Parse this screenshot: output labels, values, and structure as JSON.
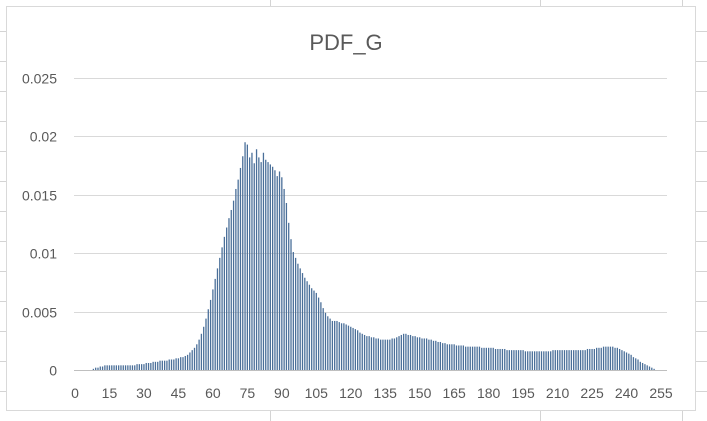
{
  "chart_data": {
    "type": "bar",
    "title": "PDF_G",
    "xlabel": "",
    "ylabel": "",
    "x_range": [
      0,
      255
    ],
    "ylim": [
      0,
      0.025
    ],
    "yticks": [
      0,
      0.005,
      0.01,
      0.015,
      0.02,
      0.025
    ],
    "ytick_labels": [
      "0",
      "0.005",
      "0.01",
      "0.015",
      "0.02",
      "0.025"
    ],
    "xticks": [
      0,
      15,
      30,
      45,
      60,
      75,
      90,
      105,
      120,
      135,
      150,
      165,
      180,
      195,
      210,
      225,
      240,
      255
    ],
    "xtick_labels": [
      "0",
      "15",
      "30",
      "45",
      "60",
      "75",
      "90",
      "105",
      "120",
      "135",
      "150",
      "165",
      "180",
      "195",
      "210",
      "225",
      "240",
      "255"
    ],
    "grid": "horizontal",
    "legend": "none",
    "bar_color": "#4a6f99",
    "values": [
      0,
      0,
      0,
      0,
      0,
      0,
      0,
      0,
      0.0001,
      0.0002,
      0.0002,
      0.0003,
      0.0003,
      0.0004,
      0.0004,
      0.0004,
      0.0004,
      0.0004,
      0.0004,
      0.0004,
      0.0004,
      0.0004,
      0.0004,
      0.0004,
      0.0004,
      0.0004,
      0.0004,
      0.0005,
      0.0005,
      0.0005,
      0.0005,
      0.0006,
      0.0006,
      0.0006,
      0.0007,
      0.0007,
      0.0007,
      0.0008,
      0.0008,
      0.0008,
      0.0008,
      0.0009,
      0.0009,
      0.0009,
      0.001,
      0.001,
      0.0011,
      0.0011,
      0.0012,
      0.0013,
      0.0015,
      0.0017,
      0.0019,
      0.0022,
      0.0026,
      0.0031,
      0.0037,
      0.0044,
      0.0052,
      0.006,
      0.0069,
      0.0078,
      0.0087,
      0.0096,
      0.0105,
      0.0114,
      0.0122,
      0.013,
      0.0137,
      0.0145,
      0.0155,
      0.0163,
      0.0173,
      0.0183,
      0.0195,
      0.0193,
      0.0182,
      0.0186,
      0.0177,
      0.0189,
      0.0182,
      0.0178,
      0.0186,
      0.018,
      0.0178,
      0.0176,
      0.0174,
      0.0171,
      0.0166,
      0.017,
      0.0165,
      0.0155,
      0.0143,
      0.0126,
      0.0112,
      0.0101,
      0.0096,
      0.0091,
      0.0087,
      0.0083,
      0.0079,
      0.0076,
      0.0073,
      0.007,
      0.0068,
      0.0066,
      0.0062,
      0.0058,
      0.0053,
      0.0049,
      0.0046,
      0.0044,
      0.0042,
      0.0042,
      0.0042,
      0.0041,
      0.004,
      0.004,
      0.0039,
      0.0038,
      0.0037,
      0.0036,
      0.0035,
      0.0034,
      0.0032,
      0.0031,
      0.003,
      0.0029,
      0.0029,
      0.0028,
      0.0028,
      0.0027,
      0.0027,
      0.0026,
      0.0026,
      0.0026,
      0.0026,
      0.0026,
      0.0027,
      0.0027,
      0.0028,
      0.0029,
      0.003,
      0.0031,
      0.0031,
      0.003,
      0.003,
      0.0029,
      0.0029,
      0.0028,
      0.0028,
      0.0027,
      0.0027,
      0.0027,
      0.0026,
      0.0026,
      0.0025,
      0.0025,
      0.0024,
      0.0024,
      0.0023,
      0.0023,
      0.0022,
      0.0022,
      0.0022,
      0.0022,
      0.0021,
      0.0021,
      0.0021,
      0.0021,
      0.002,
      0.002,
      0.002,
      0.002,
      0.002,
      0.002,
      0.002,
      0.0019,
      0.0019,
      0.0019,
      0.0019,
      0.0019,
      0.0019,
      0.0018,
      0.0018,
      0.0018,
      0.0018,
      0.0018,
      0.0017,
      0.0017,
      0.0017,
      0.0017,
      0.0017,
      0.0017,
      0.0017,
      0.0017,
      0.0016,
      0.0016,
      0.0016,
      0.0016,
      0.0016,
      0.0016,
      0.0016,
      0.0016,
      0.0016,
      0.0016,
      0.0016,
      0.0016,
      0.0017,
      0.0017,
      0.0017,
      0.0017,
      0.0017,
      0.0017,
      0.0017,
      0.0017,
      0.0017,
      0.0017,
      0.0017,
      0.0017,
      0.0017,
      0.0017,
      0.0017,
      0.0018,
      0.0018,
      0.0018,
      0.0018,
      0.0019,
      0.0019,
      0.0019,
      0.002,
      0.002,
      0.002,
      0.002,
      0.002,
      0.0019,
      0.0019,
      0.0018,
      0.0017,
      0.0016,
      0.0015,
      0.0014,
      0.0013,
      0.0011,
      0.001,
      0.0009,
      0.0007,
      0.0006,
      0.0005,
      0.0004,
      0.0003,
      0.0002,
      0.0001
    ]
  }
}
